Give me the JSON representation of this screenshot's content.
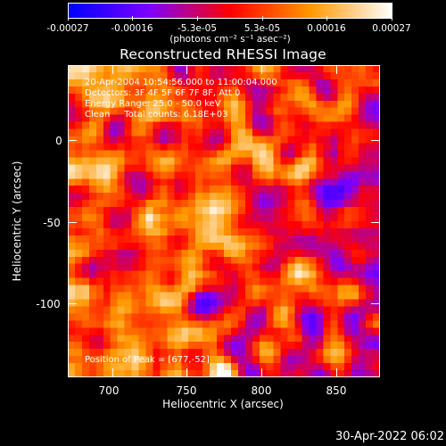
{
  "colorbar": {
    "labels": [
      "-0.00027",
      "-0.00016",
      "-5.3e-05",
      "5.3e-05",
      "0.00016",
      "0.00027"
    ],
    "units": "(photons cm⁻² s⁻¹ asec⁻²)",
    "colors": [
      "#0000ff",
      "#7f00ff",
      "#ff0000",
      "#ff9900",
      "#ffffff"
    ]
  },
  "title": "Reconstructed RHESSI Image",
  "info": {
    "time": "20-Apr-2004 10:54:56.000 to 11:00:04.000",
    "detectors": "Detectors: 3F 4F 5F 6F 7F 8F, Att 0",
    "energy": "Energy Range: 25.0 - 50.0 keV",
    "clean": "Clean     Total counts: 6.18E+03"
  },
  "peak": "Position of Peak = [677,-52]",
  "x_axis": {
    "title": "Heliocentric X (arcsec)",
    "ticks": [
      "700",
      "750",
      "800",
      "850"
    ]
  },
  "y_axis": {
    "title": "Heliocentric Y (arcsec)",
    "ticks": [
      "0",
      "-50",
      "-100"
    ]
  },
  "datestamp": "30-Apr-2022 06:02"
}
